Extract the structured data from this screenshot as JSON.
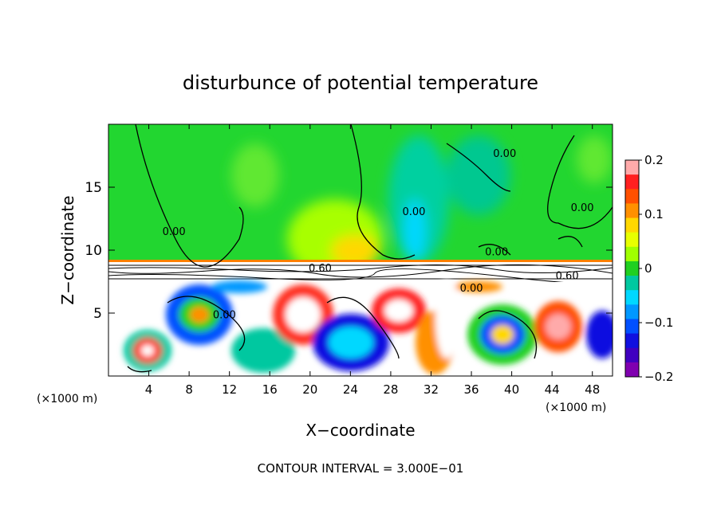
{
  "chart_data": {
    "type": "heatmap",
    "title": "disturbunce of potential temperature",
    "xlabel": "X−coordinate",
    "ylabel": "Z−coordinate",
    "x_unit_left": "(×1000 m)",
    "x_unit_right": "(×1000 m)",
    "footer": "CONTOUR INTERVAL = 3.000E−01",
    "xlim": [
      0,
      50
    ],
    "ylim": [
      0,
      20
    ],
    "x_ticks": [
      4,
      8,
      12,
      16,
      20,
      24,
      28,
      32,
      36,
      40,
      44,
      48
    ],
    "x_tick_labels": [
      "4",
      "8",
      "12",
      "16",
      "20",
      "24",
      "28",
      "32",
      "36",
      "40",
      "44",
      "48"
    ],
    "y_ticks": [
      5,
      10,
      15
    ],
    "y_tick_labels": [
      "5",
      "10",
      "15"
    ],
    "colorbar": {
      "range": [
        -0.2,
        0.2
      ],
      "ticks": [
        0.2,
        0.1,
        0,
        -0.1,
        -0.2
      ],
      "tick_labels": [
        "0.2",
        "0.1",
        "0",
        "−0.1",
        "−0.2"
      ],
      "colors": [
        "#ffaaaa",
        "#ff2020",
        "#ff5000",
        "#ff9000",
        "#ffd800",
        "#e8ff00",
        "#a0ff00",
        "#20d020",
        "#00c8a0",
        "#00d8ff",
        "#0098ff",
        "#0050ff",
        "#1010e0",
        "#4000c0",
        "#8000b0"
      ]
    },
    "contour_labels": [
      {
        "text": "0.00",
        "x": 6.5,
        "z": 11.2
      },
      {
        "text": "0.00",
        "x": 30.3,
        "z": 12.8
      },
      {
        "text": "0.00",
        "x": 38.5,
        "z": 9.6
      },
      {
        "text": "0.00",
        "x": 39.3,
        "z": 17.4
      },
      {
        "text": "0.00",
        "x": 47.0,
        "z": 13.1
      },
      {
        "text": "0.00",
        "x": 11.5,
        "z": 4.6
      },
      {
        "text": "0.60",
        "x": 21.0,
        "z": 8.3
      },
      {
        "text": "0.60",
        "x": 45.5,
        "z": 7.7
      },
      {
        "text": "0.00",
        "x": 36.0,
        "z": 6.7
      }
    ]
  }
}
